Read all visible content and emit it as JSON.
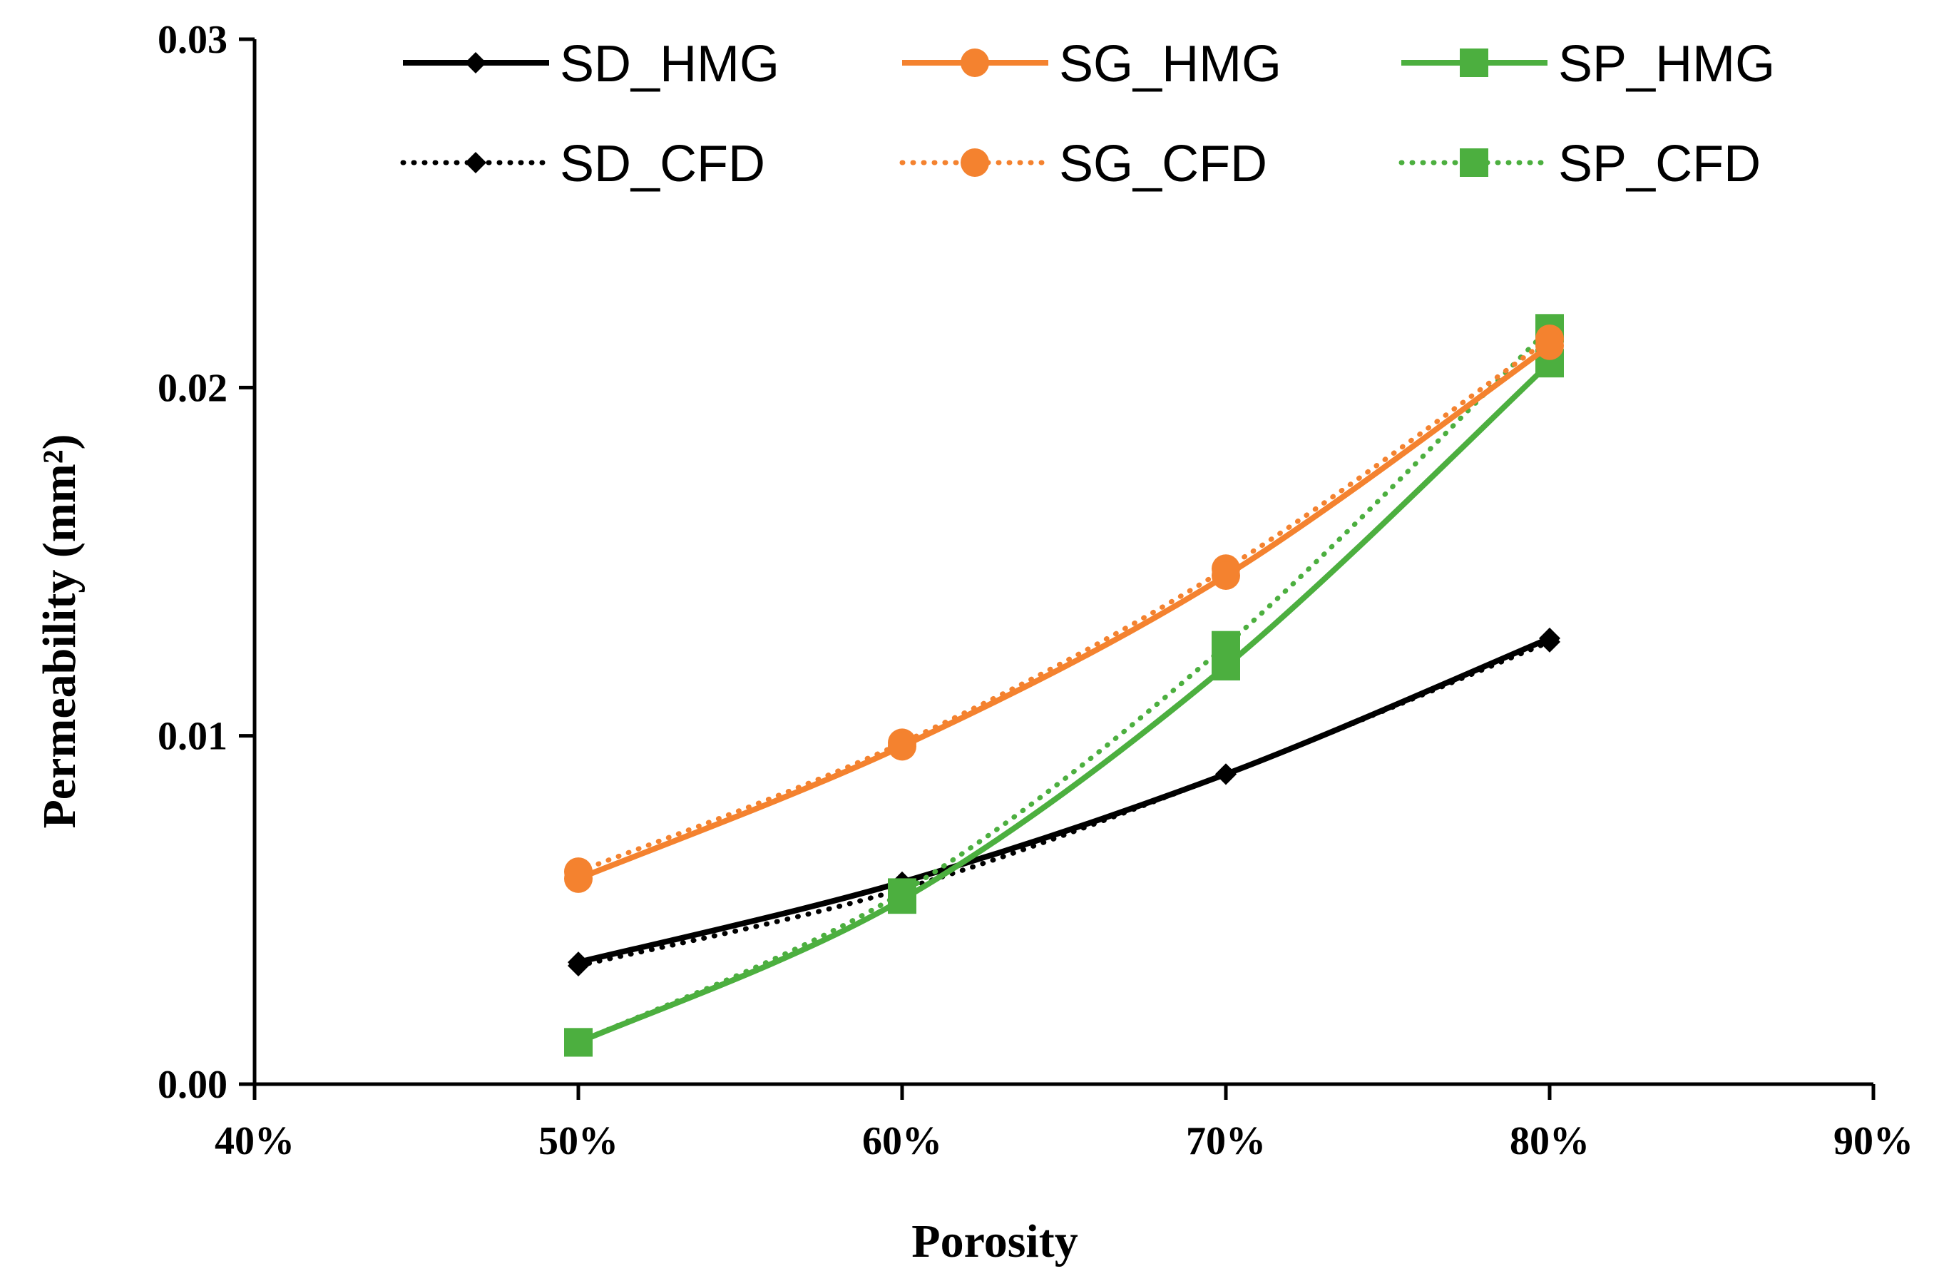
{
  "chart_data": {
    "type": "line",
    "title": "",
    "xlabel": "Porosity",
    "ylabel": "Permeability (mm²)",
    "xlim": [
      0.4,
      0.9
    ],
    "ylim": [
      0,
      0.03
    ],
    "x_ticks": [
      0.4,
      0.5,
      0.6,
      0.7,
      0.8,
      0.9
    ],
    "x_tick_labels": [
      "40%",
      "50%",
      "60%",
      "70%",
      "80%",
      "90%"
    ],
    "y_ticks": [
      0,
      0.01,
      0.02,
      0.03
    ],
    "y_tick_labels": [
      "0.00",
      "0.01",
      "0.02",
      "0.03"
    ],
    "grid": false,
    "legend_position": "top",
    "series": [
      {
        "name": "SD_HMG",
        "color": "#000000",
        "dash": "solid",
        "marker": "diamond",
        "x": [
          0.5,
          0.6,
          0.7,
          0.8
        ],
        "values": [
          0.0035,
          0.0058,
          0.0089,
          0.0128
        ]
      },
      {
        "name": "SG_HMG",
        "color": "#F4822F",
        "dash": "solid",
        "marker": "circle",
        "x": [
          0.5,
          0.6,
          0.7,
          0.8
        ],
        "values": [
          0.0059,
          0.0097,
          0.0146,
          0.0212
        ]
      },
      {
        "name": "SP_HMG",
        "color": "#4CAF3F",
        "dash": "solid",
        "marker": "square",
        "x": [
          0.5,
          0.6,
          0.7,
          0.8
        ],
        "values": [
          0.0012,
          0.0053,
          0.012,
          0.0207
        ]
      },
      {
        "name": "SD_CFD",
        "color": "#000000",
        "dash": "dotted",
        "marker": "diamond",
        "x": [
          0.5,
          0.6,
          0.7,
          0.8
        ],
        "values": [
          0.0034,
          0.0056,
          0.0089,
          0.0127
        ]
      },
      {
        "name": "SG_CFD",
        "color": "#F4822F",
        "dash": "dotted",
        "marker": "circle",
        "x": [
          0.5,
          0.6,
          0.7,
          0.8
        ],
        "values": [
          0.0061,
          0.0098,
          0.0148,
          0.0214
        ]
      },
      {
        "name": "SP_CFD",
        "color": "#4CAF3F",
        "dash": "dotted",
        "marker": "square",
        "x": [
          0.5,
          0.6,
          0.7,
          0.8
        ],
        "values": [
          0.0012,
          0.0055,
          0.0126,
          0.0217
        ]
      }
    ]
  }
}
